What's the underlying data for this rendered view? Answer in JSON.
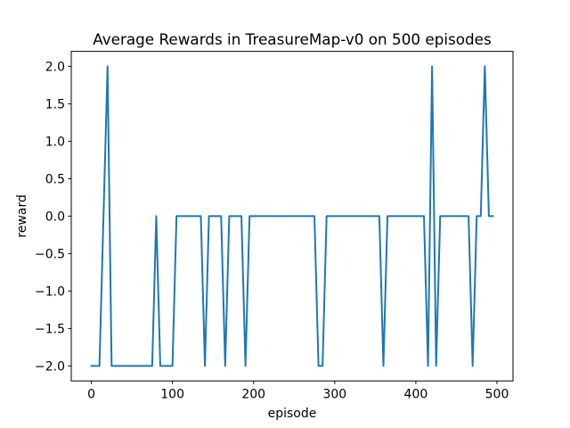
{
  "chart_data": {
    "type": "line",
    "title": "Average Rewards in TreasureMap-v0 on 500 episodes",
    "xlabel": "episode",
    "ylabel": "reward",
    "xlim": [
      -24.75,
      519.75
    ],
    "ylim": [
      -2.2,
      2.2
    ],
    "xticks": [
      0,
      100,
      200,
      300,
      400,
      500
    ],
    "xtick_labels": [
      "0",
      "100",
      "200",
      "300",
      "400",
      "500"
    ],
    "yticks": [
      -2.0,
      -1.5,
      -1.0,
      -0.5,
      0.0,
      0.5,
      1.0,
      1.5,
      2.0
    ],
    "ytick_labels": [
      "−2.0",
      "−1.5",
      "−1.0",
      "−0.5",
      "0.0",
      "0.5",
      "1.0",
      "1.5",
      "2.0"
    ],
    "grid": false,
    "series": [
      {
        "color": "#1f77b4",
        "x": [
          0,
          5,
          10,
          15,
          20,
          25,
          30,
          35,
          40,
          45,
          50,
          55,
          60,
          65,
          70,
          75,
          80,
          85,
          90,
          95,
          100,
          105,
          110,
          115,
          120,
          125,
          130,
          135,
          140,
          145,
          150,
          155,
          160,
          165,
          170,
          175,
          180,
          185,
          190,
          195,
          200,
          205,
          210,
          215,
          220,
          225,
          230,
          235,
          240,
          245,
          250,
          255,
          260,
          265,
          270,
          275,
          280,
          285,
          290,
          295,
          300,
          305,
          310,
          315,
          320,
          325,
          330,
          335,
          340,
          345,
          350,
          355,
          360,
          365,
          370,
          375,
          380,
          385,
          390,
          395,
          400,
          405,
          410,
          415,
          420,
          425,
          430,
          435,
          440,
          445,
          450,
          455,
          460,
          465,
          470,
          475,
          480,
          485,
          490,
          495
        ],
        "y": [
          -2,
          -2,
          -2,
          0,
          2,
          -2,
          -2,
          -2,
          -2,
          -2,
          -2,
          -2,
          -2,
          -2,
          -2,
          -2,
          0,
          -2,
          -2,
          -2,
          -2,
          0,
          0,
          0,
          0,
          0,
          0,
          0,
          -2,
          0,
          0,
          0,
          0,
          -2,
          0,
          0,
          0,
          0,
          -2,
          0,
          0,
          0,
          0,
          0,
          0,
          0,
          0,
          0,
          0,
          0,
          0,
          0,
          0,
          0,
          0,
          0,
          -2,
          -2,
          0,
          0,
          0,
          0,
          0,
          0,
          0,
          0,
          0,
          0,
          0,
          0,
          0,
          0,
          -2,
          0,
          0,
          0,
          0,
          0,
          0,
          0,
          0,
          0,
          0,
          -2,
          2,
          -2,
          0,
          0,
          0,
          0,
          0,
          0,
          0,
          0,
          -2,
          0,
          0,
          2,
          0,
          0
        ]
      }
    ]
  }
}
